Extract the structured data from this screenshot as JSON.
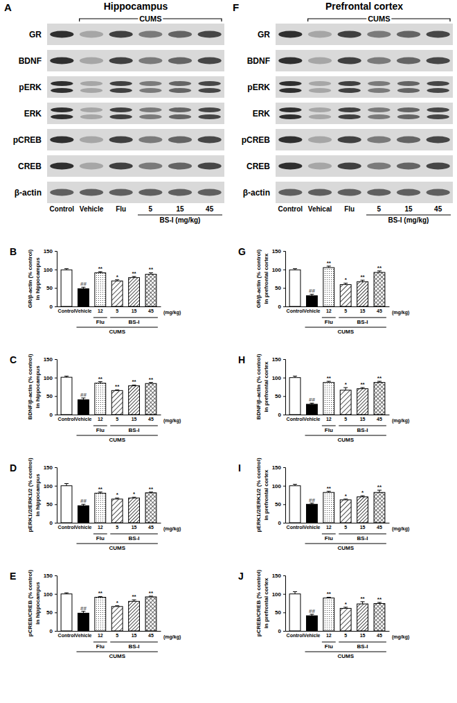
{
  "blots": [
    {
      "panel": "A",
      "title": "Hippocampus",
      "treatment": "CUMS",
      "treatment_lanes": [
        1,
        2,
        3,
        4,
        5
      ],
      "rows": [
        "GR",
        "BDNF",
        "pERK",
        "ERK",
        "pCREB",
        "CREB",
        "β-actin"
      ],
      "lanes": [
        "Control",
        "Vehicle",
        "Flu",
        "5",
        "15",
        "45"
      ],
      "dose_group": "BS-I (mg/kg)",
      "dose_lanes": [
        3,
        4,
        5
      ]
    },
    {
      "panel": "F",
      "title": "Prefrontal cortex",
      "treatment": "CUMS",
      "treatment_lanes": [
        1,
        2,
        3,
        4,
        5
      ],
      "rows": [
        "GR",
        "BDNF",
        "pERK",
        "ERK",
        "pCREB",
        "CREB",
        "β-actin"
      ],
      "lanes": [
        "Control",
        "Vehical",
        "Flu",
        "5",
        "15",
        "45"
      ],
      "dose_group": "BS-I (mg/kg)",
      "dose_lanes": [
        3,
        4,
        5
      ]
    }
  ],
  "chart_data": [
    {
      "type": "bar",
      "panel": "B",
      "y_label": [
        "GR/β-actin (% control)",
        "in hippocampus"
      ],
      "categories": [
        "Control",
        "Vehicle",
        "12",
        "5",
        "15",
        "45"
      ],
      "x_unit": "(mg/kg)",
      "groups": [
        {
          "label": "Flu",
          "members": [
            2
          ]
        },
        {
          "label": "BS-I",
          "members": [
            3,
            4,
            5
          ]
        }
      ],
      "treatment": {
        "label": "CUMS",
        "members": [
          1,
          2,
          3,
          4,
          5
        ]
      },
      "values": [
        99,
        48,
        91,
        69,
        78,
        87
      ],
      "errors": [
        3,
        4,
        3,
        3,
        3,
        4
      ],
      "annotations": [
        null,
        "##",
        "**",
        "*",
        "**",
        "**"
      ],
      "colors": [
        "#ffffff",
        "#000000",
        "#ffffff",
        "#ffffff",
        "#ffffff",
        "#ffffff"
      ],
      "ylim": [
        0,
        150
      ],
      "yticks": [
        0,
        50,
        100,
        150
      ]
    },
    {
      "type": "bar",
      "panel": "C",
      "y_label": [
        "BDNF/β-actin (% control)",
        "in hippocampus"
      ],
      "categories": [
        "Control",
        "Vehicle",
        "12",
        "5",
        "15",
        "45"
      ],
      "x_unit": "(mg/kg)",
      "groups": [
        {
          "label": "Flu",
          "members": [
            2
          ]
        },
        {
          "label": "BS-I",
          "members": [
            3,
            4,
            5
          ]
        }
      ],
      "treatment": {
        "label": "CUMS",
        "members": [
          1,
          2,
          3,
          4,
          5
        ]
      },
      "values": [
        101,
        40,
        85,
        65,
        78,
        84
      ],
      "errors": [
        3,
        5,
        4,
        2,
        2,
        3
      ],
      "annotations": [
        null,
        "##",
        "**",
        "**",
        "**",
        "**"
      ],
      "colors": [
        "#ffffff",
        "#000000",
        "#ffffff",
        "#ffffff",
        "#ffffff",
        "#ffffff"
      ],
      "ylim": [
        0,
        150
      ],
      "yticks": [
        0,
        50,
        100,
        150
      ]
    },
    {
      "type": "bar",
      "panel": "D",
      "y_label": [
        "pERK1/2/ERK1/2 (% control)",
        "in hippocampus"
      ],
      "categories": [
        "Control",
        "Vehicle",
        "12",
        "5",
        "15",
        "45"
      ],
      "x_unit": "(mg/kg)",
      "groups": [
        {
          "label": "Flu",
          "members": [
            2
          ]
        },
        {
          "label": "BS-I",
          "members": [
            3,
            4,
            5
          ]
        }
      ],
      "treatment": {
        "label": "CUMS",
        "members": [
          1,
          2,
          3,
          4,
          5
        ]
      },
      "values": [
        100,
        46,
        80,
        64,
        67,
        81
      ],
      "errors": [
        6,
        4,
        3,
        3,
        2,
        2
      ],
      "annotations": [
        null,
        "##",
        "**",
        "*",
        "*",
        "**"
      ],
      "colors": [
        "#ffffff",
        "#000000",
        "#ffffff",
        "#ffffff",
        "#ffffff",
        "#ffffff"
      ],
      "ylim": [
        0,
        150
      ],
      "yticks": [
        0,
        50,
        100,
        150
      ]
    },
    {
      "type": "bar",
      "panel": "E",
      "y_label": [
        "pCREB/CREB (% control)",
        "in hippocampus"
      ],
      "categories": [
        "Control",
        "Vehicle",
        "12",
        "5",
        "15",
        "45"
      ],
      "x_unit": "(mg/kg)",
      "groups": [
        {
          "label": "Flu",
          "members": [
            2
          ]
        },
        {
          "label": "BS-I",
          "members": [
            3,
            4,
            5
          ]
        }
      ],
      "treatment": {
        "label": "CUMS",
        "members": [
          1,
          2,
          3,
          4,
          5
        ]
      },
      "values": [
        100,
        48,
        91,
        66,
        80,
        92
      ],
      "errors": [
        3,
        5,
        2,
        2,
        4,
        2
      ],
      "annotations": [
        null,
        "##",
        "**",
        "*",
        "**",
        "**"
      ],
      "colors": [
        "#ffffff",
        "#000000",
        "#ffffff",
        "#ffffff",
        "#ffffff",
        "#ffffff"
      ],
      "ylim": [
        0,
        150
      ],
      "yticks": [
        0,
        50,
        100,
        150
      ]
    },
    {
      "type": "bar",
      "panel": "G",
      "y_label": [
        "GR/β-actin (% control)",
        "in prefrontal cortex"
      ],
      "categories": [
        "Control",
        "Vehicle",
        "12",
        "5",
        "15",
        "45"
      ],
      "x_unit": "(mg/kg)",
      "groups": [
        {
          "label": "Flu",
          "members": [
            2
          ]
        },
        {
          "label": "BS-I",
          "members": [
            3,
            4,
            5
          ]
        }
      ],
      "treatment": {
        "label": "CUMS",
        "members": [
          1,
          2,
          3,
          4,
          5
        ]
      },
      "values": [
        99,
        29,
        105,
        59,
        67,
        92
      ],
      "errors": [
        3,
        4,
        4,
        4,
        4,
        4
      ],
      "annotations": [
        null,
        "##",
        "**",
        "*",
        "**",
        "**"
      ],
      "colors": [
        "#ffffff",
        "#000000",
        "#ffffff",
        "#ffffff",
        "#ffffff",
        "#ffffff"
      ],
      "ylim": [
        0,
        150
      ],
      "yticks": [
        0,
        50,
        100,
        150
      ]
    },
    {
      "type": "bar",
      "panel": "H",
      "y_label": [
        "BDNF/β-actin (% control)",
        "in prefrontal cortex"
      ],
      "categories": [
        "Control",
        "Vehicle",
        "12",
        "5",
        "15",
        "45"
      ],
      "x_unit": "(mg/kg)",
      "groups": [
        {
          "label": "Flu",
          "members": [
            2
          ]
        },
        {
          "label": "BS-I",
          "members": [
            3,
            4,
            5
          ]
        }
      ],
      "treatment": {
        "label": "CUMS",
        "members": [
          1,
          2,
          3,
          4,
          5
        ]
      },
      "values": [
        100,
        28,
        87,
        66,
        70,
        87
      ],
      "errors": [
        4,
        3,
        3,
        7,
        3,
        3
      ],
      "annotations": [
        null,
        "##",
        "**",
        "*",
        "**",
        "**"
      ],
      "colors": [
        "#ffffff",
        "#000000",
        "#ffffff",
        "#ffffff",
        "#ffffff",
        "#ffffff"
      ],
      "ylim": [
        0,
        150
      ],
      "yticks": [
        0,
        50,
        100,
        150
      ]
    },
    {
      "type": "bar",
      "panel": "I",
      "y_label": [
        "pERK1/2/ERK1/2 (% control)",
        "in prefrontal cortex"
      ],
      "categories": [
        "Control",
        "Vehicle",
        "12",
        "5",
        "15",
        "45"
      ],
      "x_unit": "(mg/kg)",
      "groups": [
        {
          "label": "Flu",
          "members": [
            2
          ]
        },
        {
          "label": "BS-I",
          "members": [
            3,
            4,
            5
          ]
        }
      ],
      "treatment": {
        "label": "CUMS",
        "members": [
          1,
          2,
          3,
          4,
          5
        ]
      },
      "values": [
        100,
        50,
        82,
        62,
        70,
        82
      ],
      "errors": [
        4,
        3,
        3,
        2,
        3,
        6
      ],
      "annotations": [
        null,
        "##",
        "**",
        "*",
        "*",
        "**"
      ],
      "colors": [
        "#ffffff",
        "#000000",
        "#ffffff",
        "#ffffff",
        "#ffffff",
        "#ffffff"
      ],
      "ylim": [
        0,
        150
      ],
      "yticks": [
        0,
        50,
        100,
        150
      ]
    },
    {
      "type": "bar",
      "panel": "J",
      "y_label": [
        "pCREB/CREB (% control)",
        "in prefrontal cortex"
      ],
      "categories": [
        "Control",
        "Vehicle",
        "12",
        "5",
        "15",
        "45"
      ],
      "x_unit": "(mg/kg)",
      "groups": [
        {
          "label": "Flu",
          "members": [
            2
          ]
        },
        {
          "label": "BS-I",
          "members": [
            3,
            4,
            5
          ]
        }
      ],
      "treatment": {
        "label": "CUMS",
        "members": [
          1,
          2,
          3,
          4,
          5
        ]
      },
      "values": [
        100,
        41,
        89,
        61,
        73,
        74
      ],
      "errors": [
        6,
        4,
        2,
        3,
        6,
        3
      ],
      "annotations": [
        null,
        "##",
        "**",
        "*",
        "**",
        "**"
      ],
      "colors": [
        "#ffffff",
        "#000000",
        "#ffffff",
        "#ffffff",
        "#ffffff",
        "#ffffff"
      ],
      "ylim": [
        0,
        150
      ],
      "yticks": [
        0,
        50,
        100,
        150
      ]
    }
  ]
}
